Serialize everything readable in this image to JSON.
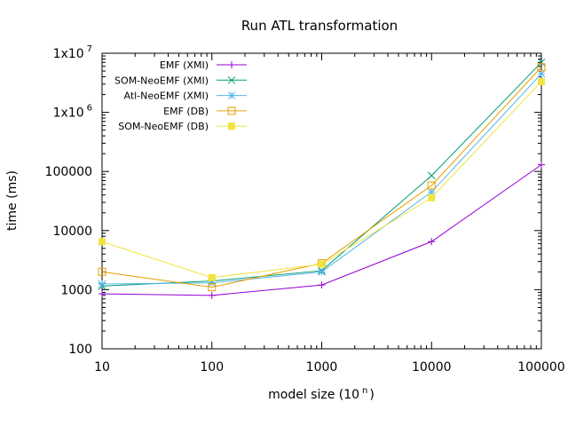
{
  "chart_data": {
    "type": "line",
    "title": "Run ATL transformation",
    "xlabel": "model size (10",
    "xlabel_sup": "n",
    "xlabel_end": ")",
    "ylabel": "time (ms)",
    "xscale": "log",
    "yscale": "log",
    "xlim": [
      10,
      100000
    ],
    "ylim": [
      100,
      10000000
    ],
    "grid": false,
    "legend_position": "top-left",
    "x_tick_labels": [
      "10",
      "100",
      "1000",
      "10000",
      "100000"
    ],
    "y_tick_labels": [
      {
        "value": 100,
        "base": "100",
        "sup": ""
      },
      {
        "value": 1000,
        "base": "1000",
        "sup": ""
      },
      {
        "value": 10000,
        "base": "10000",
        "sup": ""
      },
      {
        "value": 100000,
        "base": "100000",
        "sup": ""
      },
      {
        "value": 1000000,
        "base": "1x10",
        "sup": "6"
      },
      {
        "value": 10000000,
        "base": "1x10",
        "sup": "7"
      }
    ],
    "x": [
      10,
      100,
      1000,
      10000,
      100000
    ],
    "series": [
      {
        "name": "EMF (XMI)",
        "color": "#9400d3",
        "marker": "plus",
        "values": [
          850,
          800,
          1200,
          6500,
          130000
        ]
      },
      {
        "name": "SOM-NeoEMF (XMI)",
        "color": "#009e73",
        "marker": "x",
        "values": [
          1150,
          1400,
          2100,
          85000,
          7000000
        ]
      },
      {
        "name": "Atl-NeoEMF (XMI)",
        "color": "#56b4e9",
        "marker": "star",
        "values": [
          1250,
          1300,
          2000,
          45000,
          4500000
        ]
      },
      {
        "name": "EMF (DB)",
        "color": "#e69f00",
        "marker": "open-square",
        "values": [
          2000,
          1100,
          2800,
          58000,
          5800000
        ]
      },
      {
        "name": "SOM-NeoEMF (DB)",
        "color": "#f0e442",
        "marker": "filled-square",
        "values": [
          6500,
          1600,
          2700,
          36000,
          3300000
        ]
      }
    ]
  }
}
